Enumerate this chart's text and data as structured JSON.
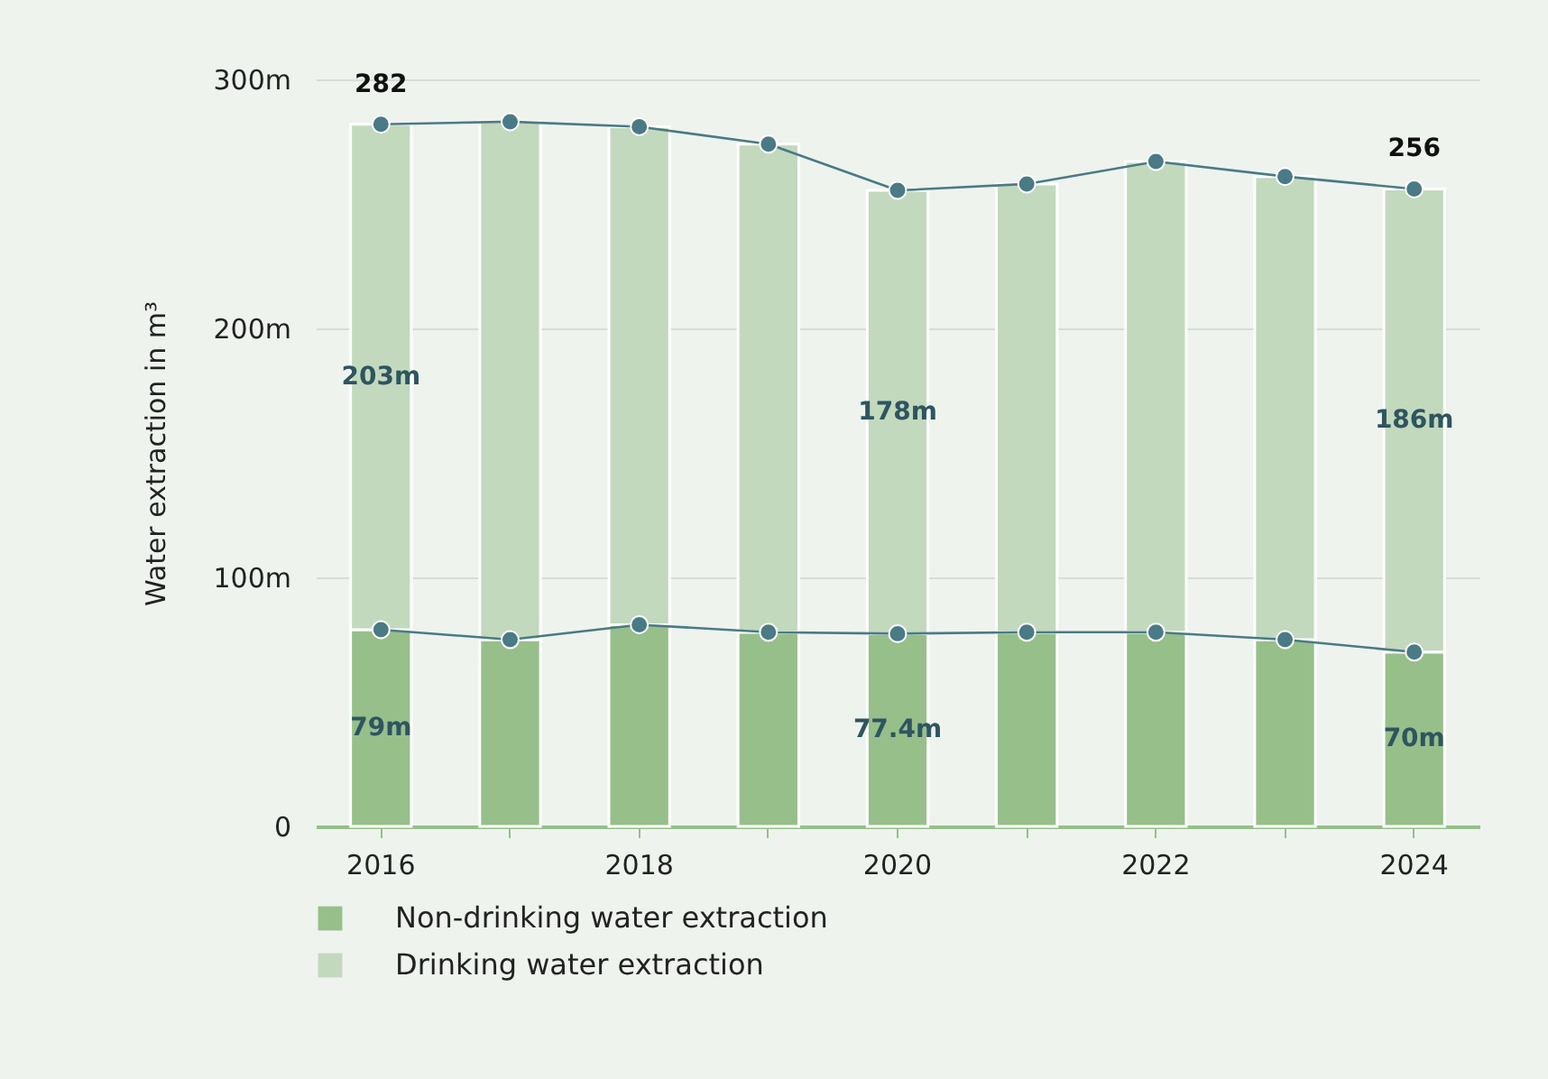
{
  "chart_data": {
    "type": "bar",
    "stacked": true,
    "ylabel": "Water extraction in m³",
    "categories": [
      "2016",
      null,
      "2018",
      null,
      "2020",
      null,
      "2022",
      null,
      "2024"
    ],
    "series": [
      {
        "name": "Non-drinking water extraction",
        "color": "#97bf8a",
        "values": [
          79,
          75,
          81,
          78,
          77.4,
          78,
          78,
          75,
          70
        ],
        "value_labels": [
          "79m",
          null,
          null,
          null,
          "77.4m",
          null,
          null,
          null,
          "70m"
        ]
      },
      {
        "name": "Drinking water extraction",
        "color": "#c2d9bd",
        "values": [
          203,
          208,
          200,
          196,
          178,
          180,
          189,
          186,
          186
        ],
        "value_labels": [
          "203m",
          null,
          null,
          null,
          "178m",
          null,
          null,
          null,
          "186m"
        ]
      },
      {
        "type": "line",
        "color": "#4a7a85",
        "values": [
          79,
          75,
          81,
          78,
          77.4,
          78,
          78,
          75,
          70
        ]
      },
      {
        "type": "line",
        "color": "#4a7a85",
        "values": [
          282,
          283,
          281,
          274,
          255.4,
          258,
          267,
          261,
          256
        ],
        "value_labels": [
          "282",
          null,
          null,
          null,
          null,
          null,
          null,
          null,
          "256"
        ]
      }
    ],
    "ylim": [
      0,
      300
    ],
    "yticks": [
      0,
      {
        "value": 100,
        "label": "100m"
      },
      {
        "value": 200,
        "label": "200m"
      },
      {
        "value": 300,
        "label": "300m"
      }
    ],
    "grid": "y",
    "legend": "bottom",
    "marker": "circle",
    "line_style": "solid"
  }
}
